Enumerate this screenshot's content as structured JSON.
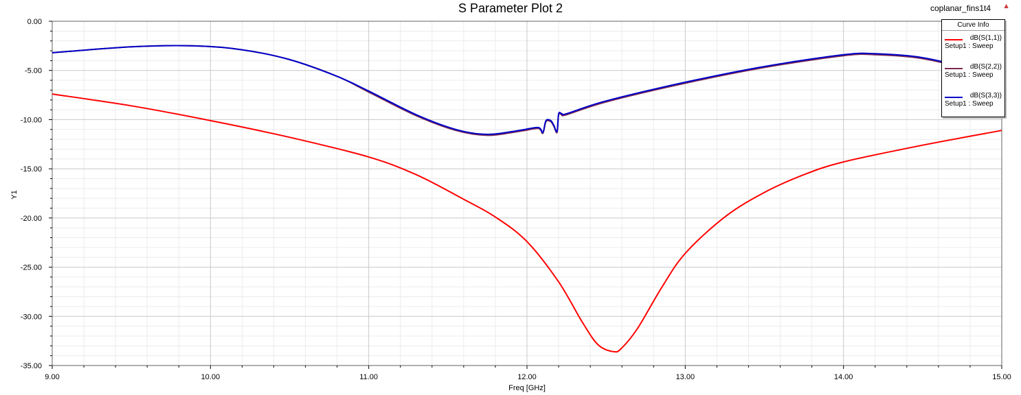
{
  "header": {
    "title": "S Parameter Plot 2",
    "project": "coplanar_fins1t4"
  },
  "legend": {
    "title": "Curve Info",
    "entries": [
      {
        "name": "dB(S(1,1))",
        "setup": "Setup1 : Sweep",
        "color": "#ff0000"
      },
      {
        "name": "dB(S(2,2))",
        "setup": "Setup1 : Sweep",
        "color": "#7a2a52"
      },
      {
        "name": "dB(S(3,3))",
        "setup": "Setup1 : Sweep",
        "color": "#0000c8"
      }
    ]
  },
  "chart_data": {
    "type": "line",
    "title": "S Parameter Plot 2",
    "xlabel": "Freq [GHz]",
    "ylabel": "Y1",
    "xlim": [
      9.0,
      15.0
    ],
    "ylim": [
      -35.0,
      0.0
    ],
    "xticks": [
      "9.00",
      "10.00",
      "11.00",
      "12.00",
      "13.00",
      "14.00",
      "15.00"
    ],
    "yticks": [
      "0.00",
      "-5.00",
      "-10.00",
      "-15.00",
      "-20.00",
      "-25.00",
      "-30.00",
      "-35.00"
    ],
    "grid": true,
    "legend_position": "top-right",
    "series": [
      {
        "name": "dB(S(1,1))",
        "color": "#ff0000",
        "x": [
          9.0,
          9.5,
          10.0,
          10.5,
          11.0,
          11.3,
          11.6,
          11.8,
          12.0,
          12.2,
          12.35,
          12.45,
          12.55,
          12.6,
          12.7,
          12.85,
          13.0,
          13.25,
          13.5,
          13.75,
          14.0,
          14.5,
          15.0
        ],
        "y": [
          -7.4,
          -8.6,
          -10.1,
          -11.8,
          -13.8,
          -15.6,
          -18.1,
          -19.9,
          -22.4,
          -26.5,
          -30.6,
          -32.9,
          -33.6,
          -33.2,
          -31.2,
          -27.1,
          -23.6,
          -19.9,
          -17.4,
          -15.6,
          -14.3,
          -12.6,
          -11.1
        ]
      },
      {
        "name": "dB(S(2,2))",
        "color": "#7a2a52",
        "x": [
          9.0,
          9.5,
          9.9,
          10.2,
          10.5,
          10.8,
          11.0,
          11.3,
          11.55,
          11.75,
          11.95,
          12.07,
          12.1,
          12.12,
          12.15,
          12.17,
          12.19,
          12.2,
          12.22,
          12.25,
          12.5,
          13.0,
          13.5,
          14.0,
          14.2,
          14.5,
          14.8,
          15.0
        ],
        "y": [
          -3.2,
          -2.6,
          -2.5,
          -2.9,
          -3.9,
          -5.6,
          -7.2,
          -9.6,
          -11.1,
          -11.6,
          -11.2,
          -10.9,
          -11.4,
          -10.2,
          -10.2,
          -10.7,
          -11.3,
          -9.5,
          -9.5,
          -9.5,
          -8.2,
          -6.3,
          -4.7,
          -3.5,
          -3.4,
          -3.8,
          -5.0,
          -6.3
        ]
      },
      {
        "name": "dB(S(3,3))",
        "color": "#0000c8",
        "x": [
          9.0,
          9.5,
          9.9,
          10.2,
          10.5,
          10.8,
          11.0,
          11.3,
          11.55,
          11.75,
          11.95,
          12.07,
          12.1,
          12.12,
          12.15,
          12.17,
          12.19,
          12.2,
          12.22,
          12.25,
          12.5,
          13.0,
          13.5,
          14.0,
          14.2,
          14.5,
          14.8,
          15.0
        ],
        "y": [
          -3.2,
          -2.6,
          -2.5,
          -2.9,
          -3.9,
          -5.6,
          -7.1,
          -9.5,
          -11.0,
          -11.5,
          -11.1,
          -10.8,
          -11.3,
          -10.1,
          -10.1,
          -10.6,
          -11.2,
          -9.4,
          -9.4,
          -9.4,
          -8.1,
          -6.2,
          -4.6,
          -3.4,
          -3.3,
          -3.7,
          -4.9,
          -6.2
        ]
      }
    ]
  }
}
